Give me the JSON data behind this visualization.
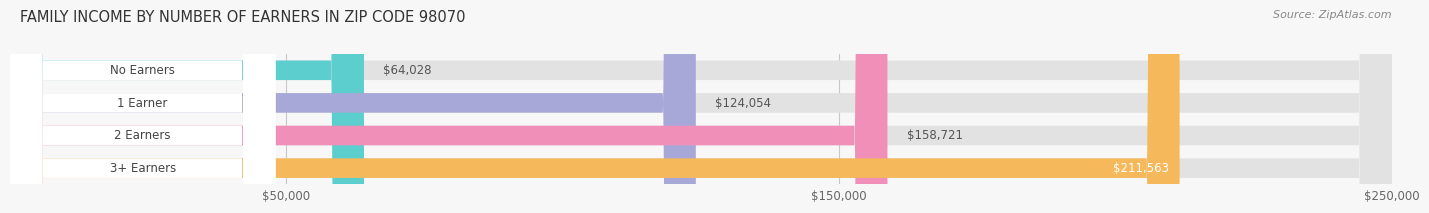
{
  "title": "FAMILY INCOME BY NUMBER OF EARNERS IN ZIP CODE 98070",
  "source": "Source: ZipAtlas.com",
  "categories": [
    "No Earners",
    "1 Earner",
    "2 Earners",
    "3+ Earners"
  ],
  "values": [
    64028,
    124054,
    158721,
    211563
  ],
  "labels": [
    "$64,028",
    "$124,054",
    "$158,721",
    "$211,563"
  ],
  "bar_colors": [
    "#5dcece",
    "#a8a8d8",
    "#f090b8",
    "#f5b85a"
  ],
  "bg_color": "#f0f0f0",
  "xmin": 0,
  "xmax": 250000,
  "xticks": [
    50000,
    150000,
    250000
  ],
  "xtick_labels": [
    "$50,000",
    "$150,000",
    "$250,000"
  ],
  "title_fontsize": 10.5,
  "source_fontsize": 8,
  "bar_label_fontsize": 8.5,
  "tick_fontsize": 8.5,
  "background_color": "#f7f7f7"
}
